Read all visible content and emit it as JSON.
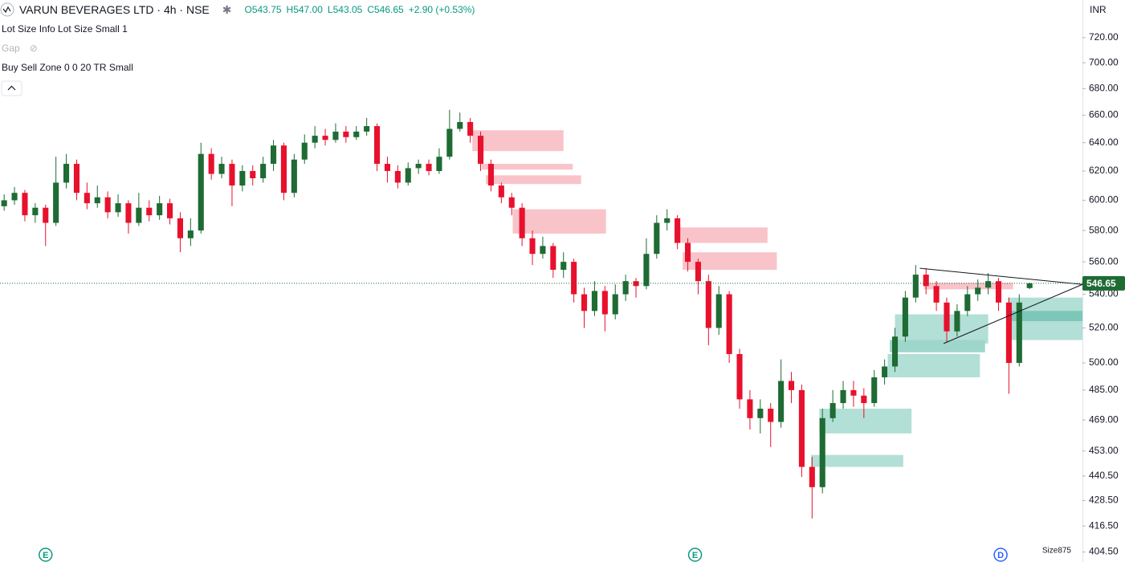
{
  "header": {
    "symbol": "VARUN BEVERAGES LTD · 4h · NSE",
    "ohlc": [
      "O543.75",
      "H547.00",
      "L543.05",
      "C546.65",
      "+2.90 (+0.53%)"
    ],
    "indicators": [
      "Lot Size Info Lot Size Small 1",
      "Gap",
      "Buy Sell Zone 0 0 20 TR Small"
    ]
  },
  "chart_data": {
    "type": "candlestick",
    "currency": "INR",
    "log_scale": true,
    "up_color": "#1e6b34",
    "down_color": "#e8112d",
    "xlim": [
      -0.4,
      104.1
    ],
    "ylim": [
      400,
      751
    ],
    "yticks": [
      {
        "value": 720,
        "label": "720.00"
      },
      {
        "value": 700,
        "label": "700.00"
      },
      {
        "value": 680,
        "label": "680.00"
      },
      {
        "value": 660,
        "label": "660.00"
      },
      {
        "value": 640,
        "label": "640.00"
      },
      {
        "value": 620,
        "label": "620.00"
      },
      {
        "value": 600,
        "label": "600.00"
      },
      {
        "value": 580,
        "label": "580.00"
      },
      {
        "value": 560,
        "label": "560.00"
      },
      {
        "value": 540,
        "label": "540.00"
      },
      {
        "value": 520,
        "label": "520.00"
      },
      {
        "value": 500,
        "label": "500.00"
      },
      {
        "value": 485,
        "label": "485.00"
      },
      {
        "value": 469,
        "label": "469.00"
      },
      {
        "value": 453,
        "label": "453.00"
      },
      {
        "value": 440.5,
        "label": "440.50"
      },
      {
        "value": 428.5,
        "label": "428.50"
      },
      {
        "value": 416.5,
        "label": "416.50"
      },
      {
        "value": 404.5,
        "label": "404.50"
      }
    ],
    "last_price": {
      "value": 546.65,
      "label": "546.65"
    },
    "candles": [
      [
        596,
        604,
        593,
        600
      ],
      [
        600,
        609,
        597,
        605
      ],
      [
        605,
        607,
        586,
        590
      ],
      [
        590,
        598,
        585,
        595
      ],
      [
        595,
        597,
        570,
        585
      ],
      [
        585,
        630,
        583,
        612
      ],
      [
        612,
        632,
        608,
        625
      ],
      [
        625,
        628,
        600,
        605
      ],
      [
        605,
        612,
        594,
        598
      ],
      [
        598,
        610,
        595,
        602
      ],
      [
        602,
        606,
        588,
        592
      ],
      [
        592,
        604,
        589,
        598
      ],
      [
        598,
        600,
        578,
        585
      ],
      [
        585,
        605,
        583,
        595
      ],
      [
        595,
        600,
        586,
        590
      ],
      [
        590,
        603,
        587,
        598
      ],
      [
        598,
        601,
        584,
        588
      ],
      [
        588,
        592,
        566,
        575
      ],
      [
        575,
        588,
        570,
        580
      ],
      [
        580,
        640,
        578,
        632
      ],
      [
        632,
        636,
        614,
        618
      ],
      [
        618,
        630,
        615,
        625
      ],
      [
        625,
        628,
        596,
        610
      ],
      [
        610,
        624,
        606,
        620
      ],
      [
        620,
        624,
        610,
        615
      ],
      [
        615,
        630,
        612,
        625
      ],
      [
        625,
        642,
        620,
        638
      ],
      [
        638,
        640,
        600,
        605
      ],
      [
        605,
        632,
        602,
        628
      ],
      [
        628,
        646,
        625,
        640
      ],
      [
        640,
        652,
        636,
        645
      ],
      [
        645,
        650,
        638,
        642
      ],
      [
        642,
        654,
        640,
        648
      ],
      [
        648,
        652,
        640,
        644
      ],
      [
        644,
        652,
        642,
        648
      ],
      [
        648,
        658,
        645,
        652
      ],
      [
        652,
        654,
        620,
        625
      ],
      [
        625,
        630,
        612,
        620
      ],
      [
        620,
        624,
        608,
        612
      ],
      [
        612,
        626,
        610,
        622
      ],
      [
        622,
        628,
        618,
        625
      ],
      [
        625,
        628,
        617,
        620
      ],
      [
        620,
        636,
        618,
        630
      ],
      [
        630,
        664,
        628,
        650
      ],
      [
        650,
        662,
        648,
        655
      ],
      [
        655,
        658,
        640,
        645
      ],
      [
        645,
        648,
        620,
        625
      ],
      [
        625,
        628,
        606,
        610
      ],
      [
        610,
        612,
        598,
        602
      ],
      [
        602,
        605,
        590,
        595
      ],
      [
        595,
        598,
        570,
        575
      ],
      [
        575,
        580,
        558,
        565
      ],
      [
        565,
        576,
        562,
        570
      ],
      [
        570,
        572,
        550,
        555
      ],
      [
        555,
        566,
        550,
        560
      ],
      [
        560,
        562,
        535,
        540
      ],
      [
        540,
        544,
        520,
        530
      ],
      [
        530,
        548,
        527,
        542
      ],
      [
        542,
        545,
        518,
        528
      ],
      [
        528,
        546,
        525,
        540
      ],
      [
        540,
        552,
        536,
        548
      ],
      [
        548,
        550,
        538,
        545
      ],
      [
        545,
        575,
        543,
        565
      ],
      [
        565,
        590,
        562,
        585
      ],
      [
        585,
        594,
        580,
        588
      ],
      [
        588,
        590,
        568,
        572
      ],
      [
        572,
        575,
        554,
        560
      ],
      [
        560,
        562,
        540,
        548
      ],
      [
        548,
        552,
        510,
        520
      ],
      [
        520,
        545,
        516,
        540
      ],
      [
        540,
        542,
        500,
        505
      ],
      [
        505,
        508,
        475,
        480
      ],
      [
        480,
        485,
        464,
        470
      ],
      [
        470,
        480,
        462,
        475
      ],
      [
        475,
        478,
        455,
        468
      ],
      [
        468,
        502,
        465,
        490
      ],
      [
        490,
        495,
        478,
        485
      ],
      [
        485,
        488,
        440,
        445
      ],
      [
        445,
        450,
        420,
        435
      ],
      [
        435,
        475,
        432,
        470
      ],
      [
        470,
        485,
        468,
        478
      ],
      [
        478,
        490,
        475,
        485
      ],
      [
        485,
        490,
        476,
        482
      ],
      [
        482,
        486,
        470,
        478
      ],
      [
        478,
        496,
        476,
        492
      ],
      [
        492,
        502,
        488,
        498
      ],
      [
        498,
        520,
        495,
        515
      ],
      [
        515,
        542,
        512,
        538
      ],
      [
        538,
        558,
        535,
        552
      ],
      [
        552,
        556,
        540,
        545
      ],
      [
        545,
        548,
        530,
        535
      ],
      [
        535,
        538,
        512,
        518
      ],
      [
        518,
        534,
        515,
        530
      ],
      [
        530,
        545,
        527,
        540
      ],
      [
        540,
        549,
        536,
        544
      ],
      [
        544,
        553,
        540,
        548
      ],
      [
        548,
        550,
        530,
        535
      ],
      [
        535,
        538,
        483,
        500
      ],
      [
        500,
        540,
        498,
        535
      ],
      [
        543.75,
        547,
        543.05,
        546.65
      ]
    ],
    "zones": [
      {
        "from": 45.2,
        "to": 54.0,
        "top": 649,
        "bottom": 634,
        "color": "#f9c3ca"
      },
      {
        "from": 46.1,
        "to": 54.9,
        "top": 625,
        "bottom": 621,
        "color": "#f9c3ca"
      },
      {
        "from": 46.5,
        "to": 55.7,
        "top": 617,
        "bottom": 611,
        "color": "#f9c3ca"
      },
      {
        "from": 49.1,
        "to": 58.1,
        "top": 594,
        "bottom": 578,
        "color": "#f9c3ca"
      },
      {
        "from": 64.7,
        "to": 73.7,
        "top": 582,
        "bottom": 572,
        "color": "#f9c3ca"
      },
      {
        "from": 65.5,
        "to": 74.6,
        "top": 566,
        "bottom": 555,
        "color": "#f9c3ca"
      },
      {
        "from": 88.8,
        "to": 97.4,
        "top": 547,
        "bottom": 543,
        "color": "#f9c3ca"
      },
      {
        "from": 86.0,
        "to": 95.0,
        "top": 528,
        "bottom": 511,
        "color": "#b2dfd6"
      },
      {
        "from": 85.5,
        "to": 94.7,
        "top": 513,
        "bottom": 506,
        "color": "#9fd6cb"
      },
      {
        "from": 85.3,
        "to": 94.2,
        "top": 505,
        "bottom": 492,
        "color": "#b2dfd6"
      },
      {
        "from": 78.7,
        "to": 87.6,
        "top": 475,
        "bottom": 462,
        "color": "#b2dfd6"
      },
      {
        "from": 77.9,
        "to": 86.8,
        "top": 451,
        "bottom": 445,
        "color": "#b2dfd6"
      },
      {
        "from": 96.9,
        "to": 104.1,
        "top": 538,
        "bottom": 513,
        "color": "#b2dfd6"
      },
      {
        "from": 97.1,
        "to": 104.1,
        "top": 530,
        "bottom": 524,
        "color": "#7cc7b8"
      }
    ],
    "trendlines": [
      {
        "points": [
          [
            88.4,
            556
          ],
          [
            104.1,
            546
          ]
        ],
        "color": "#131722"
      },
      {
        "points": [
          [
            90.7,
            511
          ],
          [
            104.1,
            546
          ]
        ],
        "color": "#131722"
      }
    ],
    "event_markers": [
      {
        "label": "E",
        "at": 4.0,
        "color": "#089981"
      },
      {
        "label": "E",
        "at": 66.7,
        "color": "#089981"
      },
      {
        "label": "D",
        "at": 96.2,
        "color": "#2962ff"
      }
    ],
    "footer_label": "Size875"
  }
}
